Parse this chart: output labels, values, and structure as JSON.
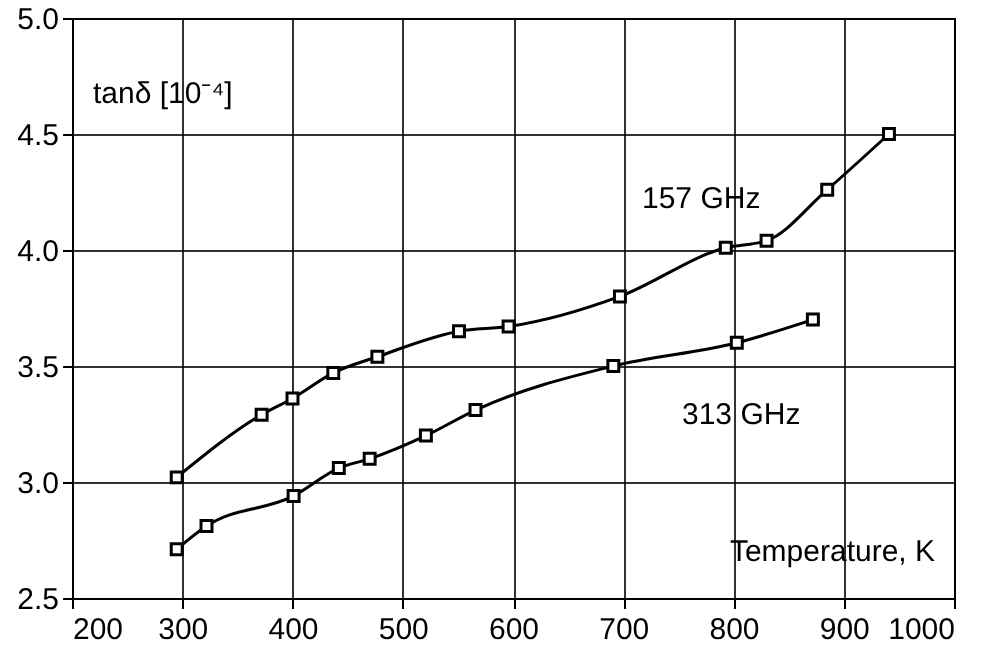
{
  "chart_data": {
    "type": "line",
    "xlabel": "Temperature, K",
    "ylabel": "tanδ [10⁻⁴]",
    "xlim": [
      200,
      1000
    ],
    "xticks": [
      200,
      300,
      400,
      500,
      600,
      700,
      800,
      900,
      1000
    ],
    "ylim": [
      2.5,
      5.0
    ],
    "yticks": [
      2.5,
      {
        "value": 3,
        "label": "3.0"
      },
      3.5,
      {
        "value": 4,
        "label": "4.0"
      },
      4.5,
      {
        "value": 5,
        "label": "5.0"
      }
    ],
    "grid": true,
    "marker": "square",
    "line_style": "solid",
    "series": [
      {
        "name": "157 GHz",
        "color": "#000000",
        "x": [
          295,
          372,
          400,
          437,
          477,
          551,
          596,
          697,
          793,
          830,
          885,
          941
        ],
        "values": [
          3.02,
          3.29,
          3.36,
          3.47,
          3.54,
          3.65,
          3.67,
          3.8,
          4.01,
          4.04,
          4.26,
          4.5
        ]
      },
      {
        "name": "313 GHz",
        "color": "#000000",
        "x": [
          295,
          322,
          401,
          442,
          470,
          521,
          566,
          691,
          803,
          872
        ],
        "values": [
          2.71,
          2.81,
          2.94,
          3.06,
          3.1,
          3.2,
          3.31,
          3.5,
          3.6,
          3.7
        ]
      }
    ]
  }
}
